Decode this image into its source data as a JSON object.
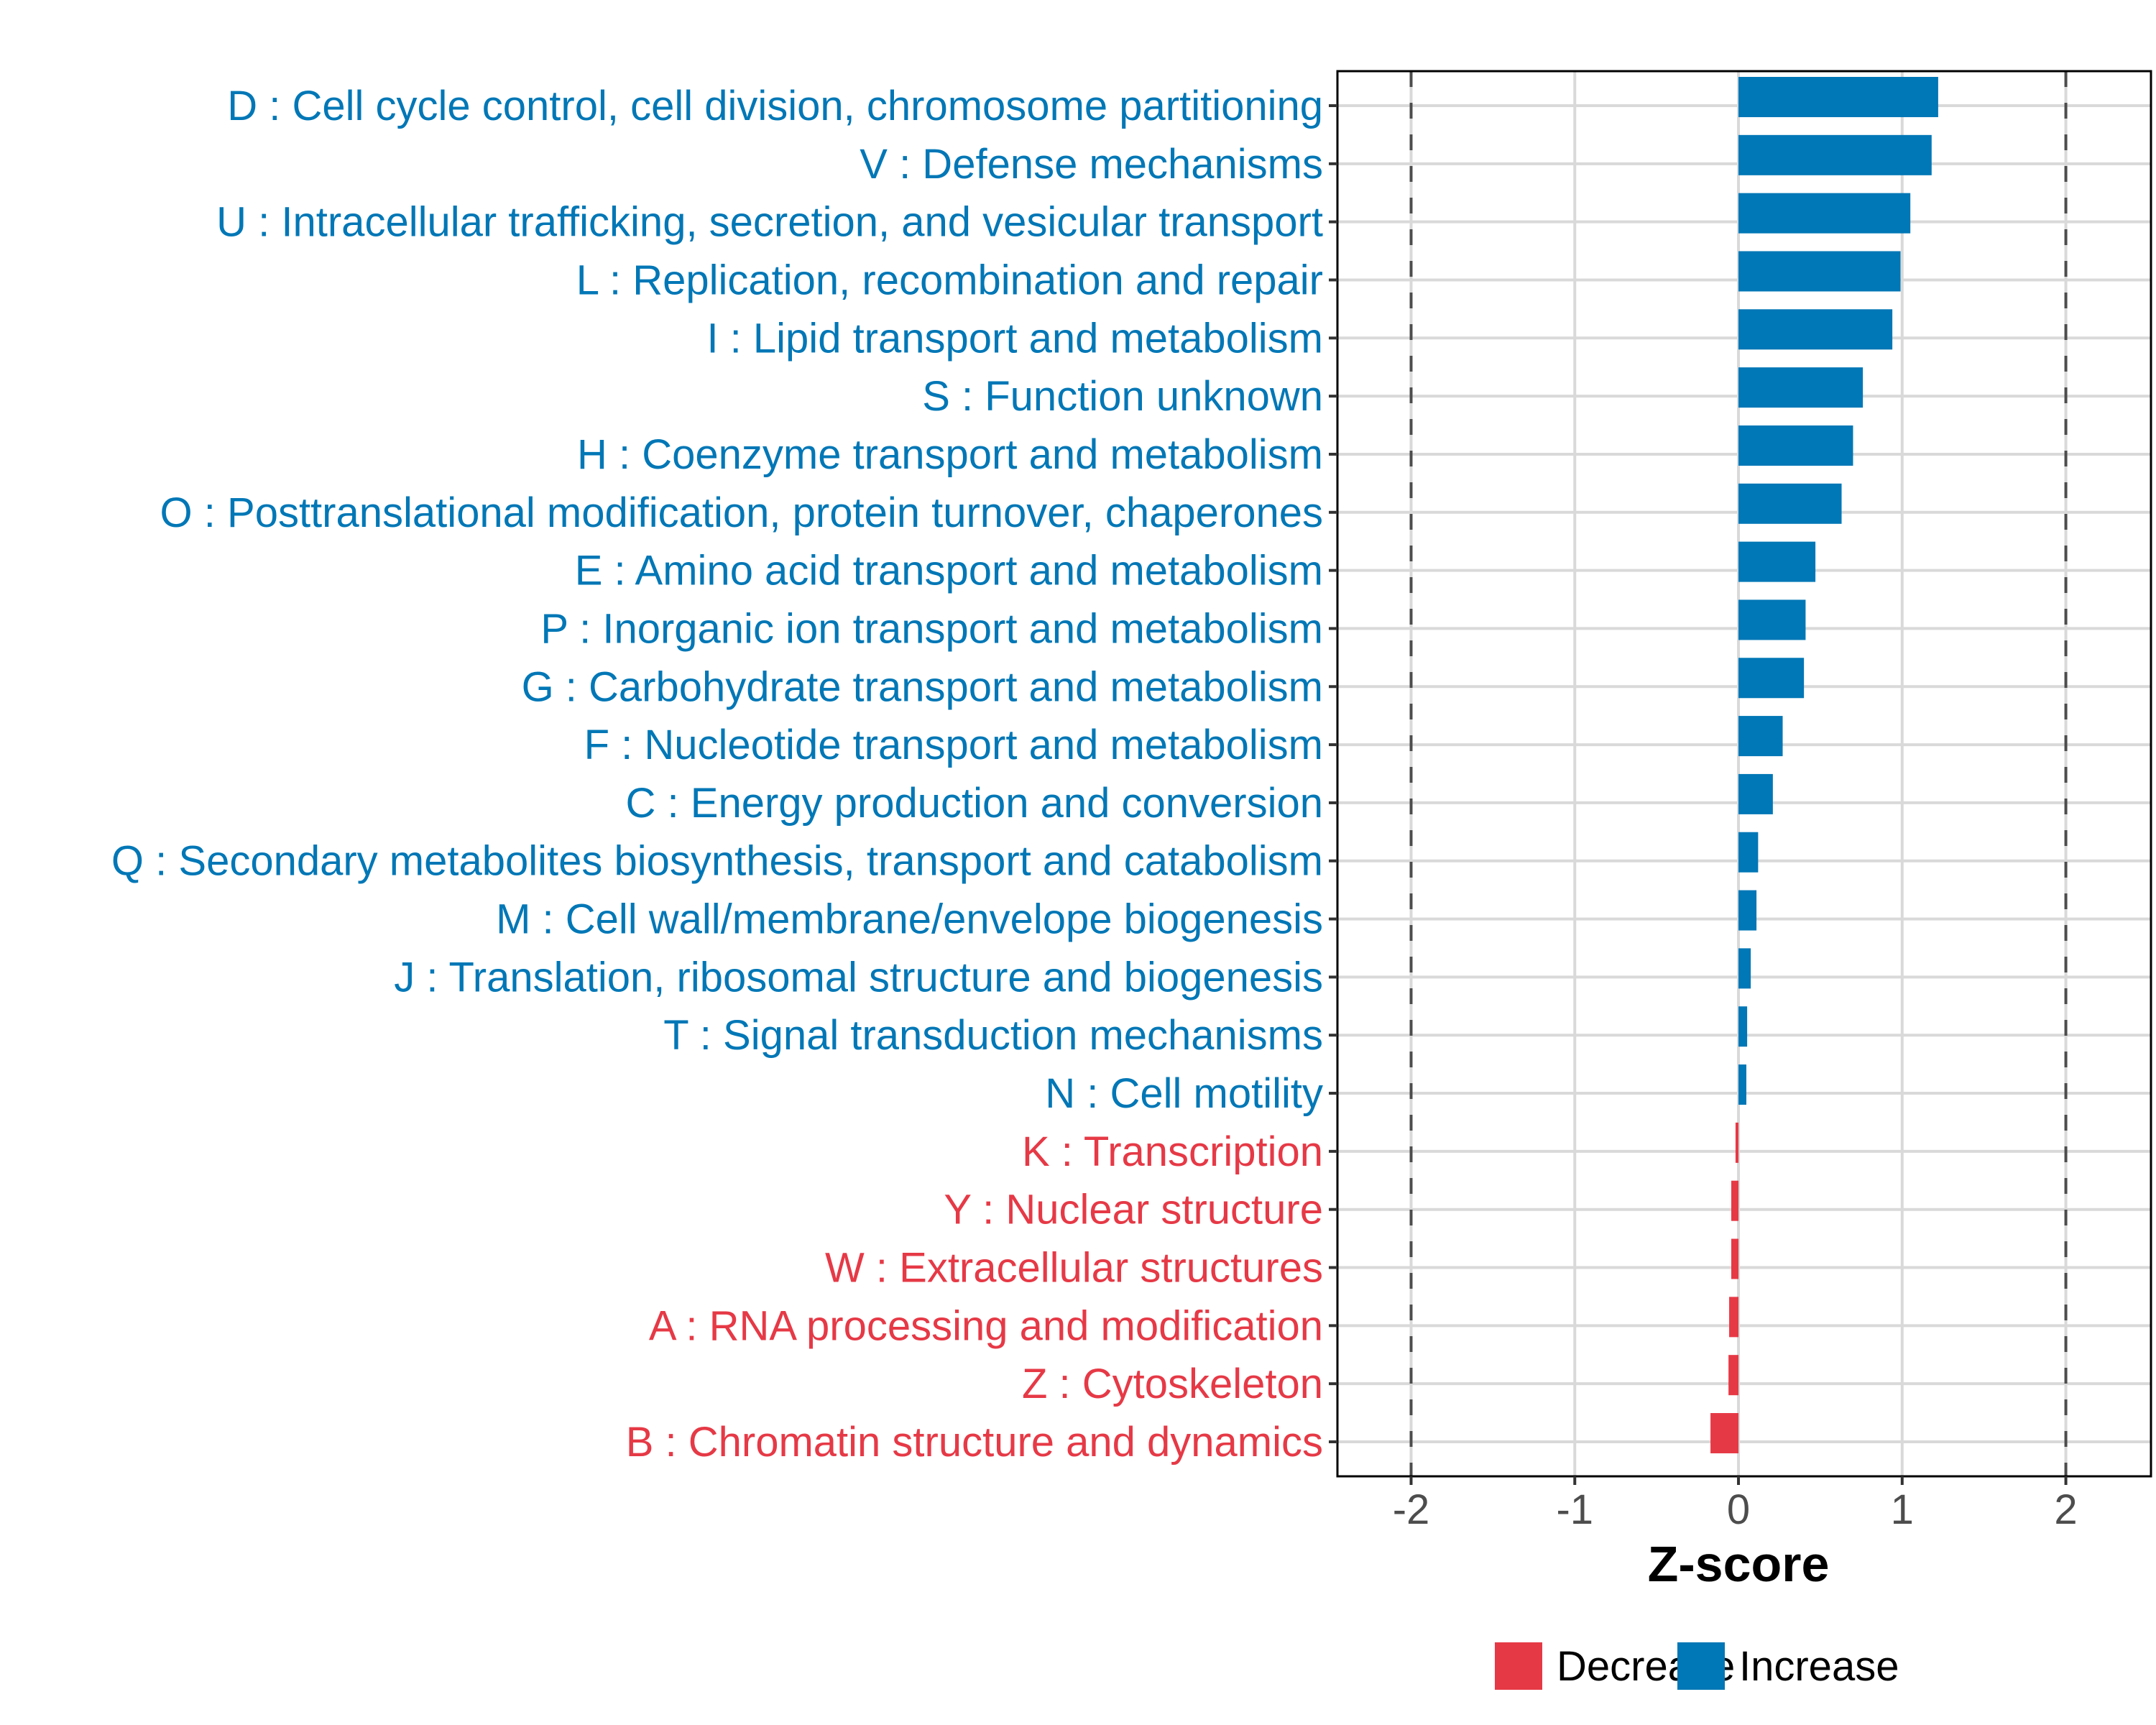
{
  "chart_data": {
    "type": "bar",
    "orientation": "horizontal",
    "title": "",
    "xlabel": "Z-score",
    "ylabel": "",
    "xlim": [
      -2.45,
      2.52
    ],
    "x_ticks": [
      -2,
      -1,
      0,
      1,
      2
    ],
    "x_tick_labels": [
      "-2",
      "-1",
      "0",
      "1",
      "2"
    ],
    "reference_lines": [
      -2,
      2
    ],
    "grid": true,
    "legend": {
      "position": "bottom",
      "entries": [
        {
          "name": "Decrease",
          "color": "#E63946"
        },
        {
          "name": "Increase",
          "color": "#0077B6"
        }
      ]
    },
    "categories": [
      "D : Cell cycle control, cell division, chromosome partitioning",
      "V : Defense mechanisms",
      "U : Intracellular trafficking, secretion, and vesicular transport",
      "L : Replication, recombination and repair",
      "I : Lipid transport and metabolism",
      "S : Function unknown",
      "H : Coenzyme transport and metabolism",
      "O : Posttranslational modification, protein turnover, chaperones",
      "E : Amino acid transport and metabolism",
      "P : Inorganic ion transport and metabolism",
      "G : Carbohydrate transport and metabolism",
      "F : Nucleotide transport and metabolism",
      "C : Energy production and conversion",
      "Q : Secondary metabolites biosynthesis, transport and catabolism",
      "M : Cell wall/membrane/envelope biogenesis",
      "J : Translation, ribosomal structure and biogenesis",
      "T : Signal transduction mechanisms",
      "N : Cell motility",
      "K : Transcription",
      "Y : Nuclear structure",
      "W : Extracellular structures",
      "A : RNA processing and modification",
      "Z : Cytoskeleton",
      "B : Chromatin structure and dynamics"
    ],
    "values": [
      1.22,
      1.18,
      1.05,
      0.99,
      0.94,
      0.76,
      0.7,
      0.63,
      0.47,
      0.41,
      0.4,
      0.27,
      0.21,
      0.12,
      0.11,
      0.075,
      0.053,
      0.048,
      -0.018,
      -0.044,
      -0.044,
      -0.057,
      -0.061,
      -0.171
    ],
    "groups": [
      "Increase",
      "Increase",
      "Increase",
      "Increase",
      "Increase",
      "Increase",
      "Increase",
      "Increase",
      "Increase",
      "Increase",
      "Increase",
      "Increase",
      "Increase",
      "Increase",
      "Increase",
      "Increase",
      "Increase",
      "Increase",
      "Decrease",
      "Decrease",
      "Decrease",
      "Decrease",
      "Decrease",
      "Decrease"
    ]
  }
}
